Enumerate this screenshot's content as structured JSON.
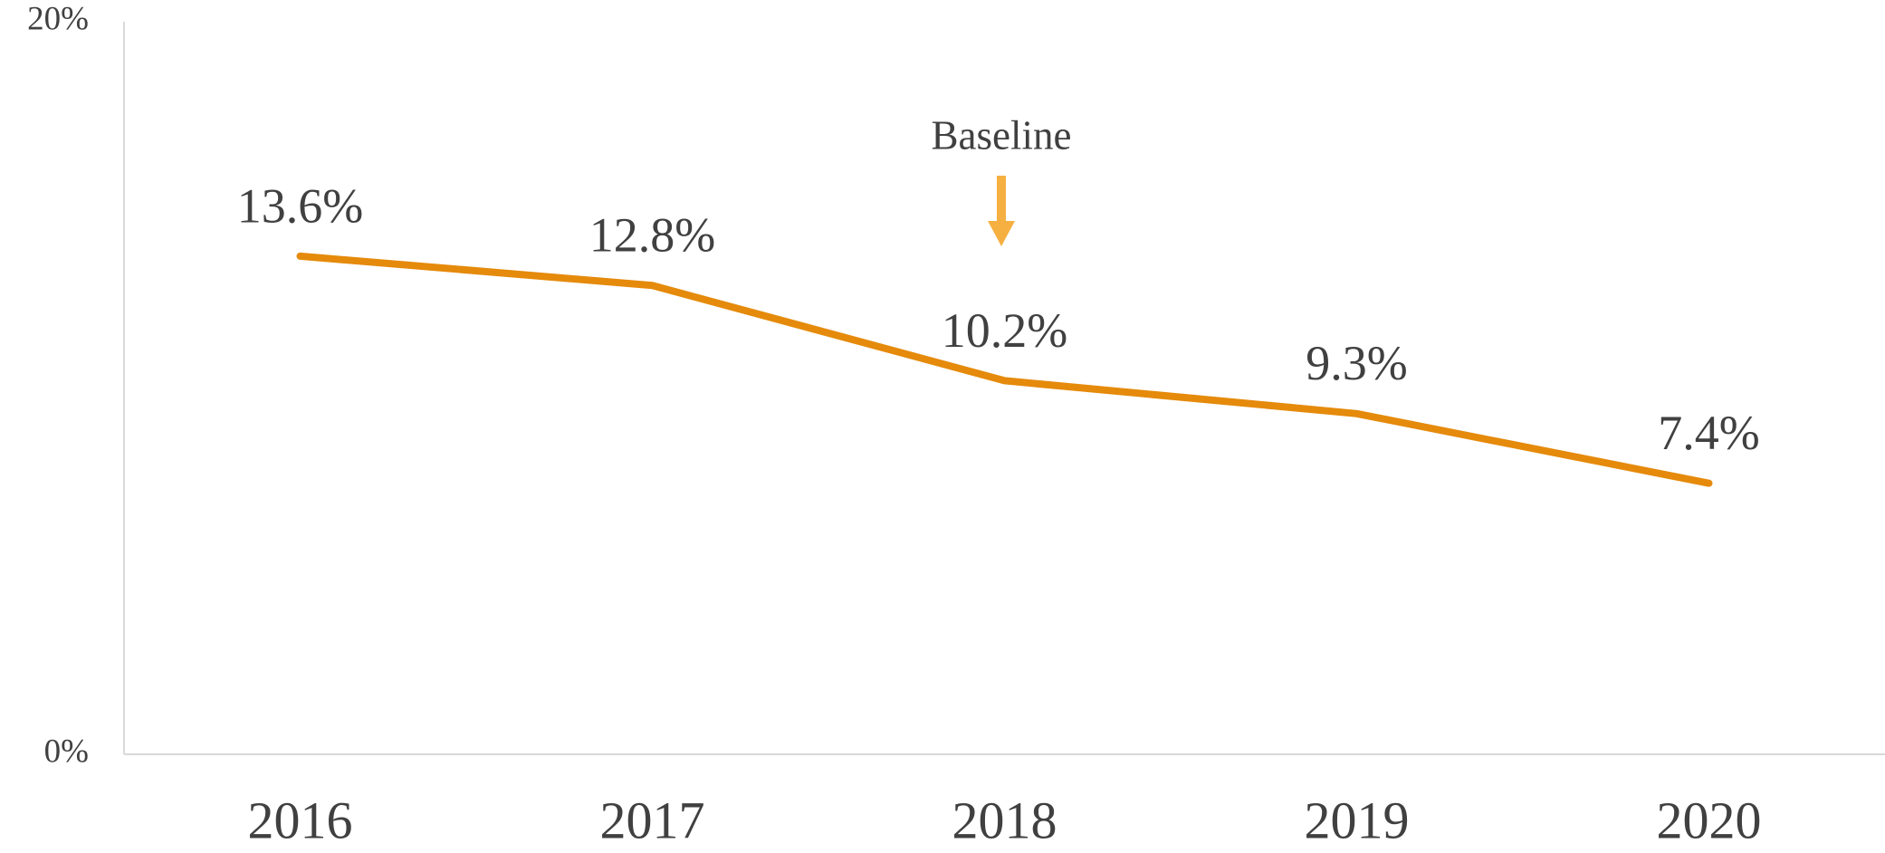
{
  "chart_data": {
    "type": "line",
    "annotation": "Baseline",
    "categories": [
      "2016",
      "2017",
      "2018",
      "2019",
      "2020"
    ],
    "values": [
      13.6,
      12.8,
      10.2,
      9.3,
      7.4
    ],
    "value_labels": [
      "13.6%",
      "12.8%",
      "10.2%",
      "9.3%",
      "7.4%"
    ],
    "color": "#e58a0b",
    "ylim": [
      0,
      20
    ],
    "yticks": [
      {
        "value": 0,
        "label": "0%"
      },
      {
        "value": 20,
        "label": "20%"
      }
    ],
    "grid": false
  }
}
